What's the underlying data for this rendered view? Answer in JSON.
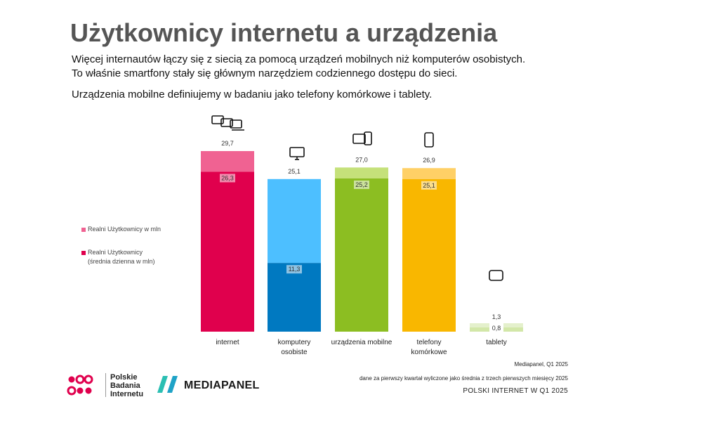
{
  "header": {
    "title": "Użytkownicy internetu a urządzenia",
    "line1": "Więcej internautów łączy się z siecią za pomocą urządzeń mobilnych niż komputerów osobistych.",
    "line2": "To właśnie smartfony stały się głównym narzędziem codziennego dostępu do sieci.",
    "line3": "Urządzenia mobilne definiujemy w badaniu jako telefony komórkowe i tablety."
  },
  "legend": {
    "item1": "Realni Użytkownicy w mln",
    "item2_line1": "Realni Użytkownicy",
    "item2_line2": "(średnia dzienna w mln)",
    "color1": "#f06292",
    "color2": "#e0004d"
  },
  "chart_data": {
    "type": "bar",
    "categories": [
      "internet",
      "komputery osobiste",
      "urządzenia mobilne",
      "telefony komórkowe",
      "tablety"
    ],
    "category_labels": [
      [
        "internet"
      ],
      [
        "komputery",
        "osobiste"
      ],
      [
        "urządzenia mobilne"
      ],
      [
        "telefony",
        "komórkowe"
      ],
      [
        "tablety"
      ]
    ],
    "series": [
      {
        "name": "Realni Użytkownicy w mln",
        "values": [
          29.7,
          25.1,
          27.0,
          26.9,
          1.3
        ],
        "labels": [
          "29,7",
          "25,1",
          "27,0",
          "26,9",
          "1,3"
        ]
      },
      {
        "name": "Realni Użytkownicy (średnia dzienna w mln)",
        "values": [
          26.3,
          11.3,
          25.2,
          25.1,
          0.8
        ],
        "labels": [
          "26,3",
          "11,3",
          "25,2",
          "25,1",
          "0,8"
        ]
      }
    ],
    "colors_total": [
      "#f06292",
      "#4dbfff",
      "#c5e17a",
      "#ffd066",
      "#dfeec0"
    ],
    "colors_daily": [
      "#e0004d",
      "#0079c1",
      "#8cbe22",
      "#f9b700",
      "#dfeec0"
    ],
    "icons": [
      "devices-group-icon",
      "desktop-icon",
      "phone-tablet-icon",
      "smartphone-icon",
      "tablet-icon"
    ],
    "ylim": [
      0,
      29.7
    ]
  },
  "source": {
    "line1": "Mediapanel, Q1 2025",
    "line2": "dane za pierwszy kwartał wyliczone jako średnia z trzech pierwszych miesięcy 2025"
  },
  "footer": "POLSKI INTERNET W Q1 2025",
  "logos": {
    "pbi_line1": "Polskie",
    "pbi_line2": "Badania",
    "pbi_line3": "Internetu",
    "mediapanel": "MEDIAPANEL",
    "pbi_color": "#e0004d",
    "mp_color": "#2bbfb3"
  }
}
